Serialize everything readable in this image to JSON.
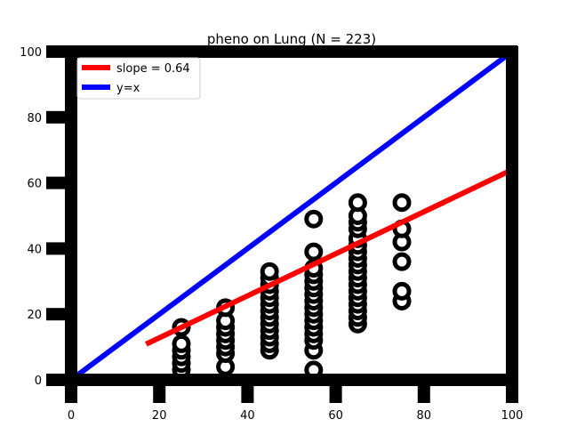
{
  "chart_data": {
    "type": "scatter",
    "title": "pheno on Lung (N = 223)",
    "xlabel": "",
    "ylabel": "",
    "xlim": [
      0,
      100
    ],
    "ylim": [
      0,
      100
    ],
    "xticks": [
      0,
      20,
      40,
      60,
      80,
      100
    ],
    "yticks": [
      0,
      20,
      40,
      60,
      80,
      100
    ],
    "grid": false,
    "legend_position": "top-left",
    "legend": [
      {
        "label": "slope = 0.64",
        "color": "#ff0000"
      },
      {
        "label": "y=x",
        "color": "#0000ff"
      }
    ],
    "lines": [
      {
        "name": "slope = 0.64",
        "slope": 0.64,
        "x0": 17,
        "x1": 100,
        "color": "#ff0000"
      },
      {
        "name": "y=x",
        "slope": 1.0,
        "x0": 0,
        "x1": 100,
        "color": "#0000ff"
      }
    ],
    "points": [
      {
        "x": 25,
        "y": 3
      },
      {
        "x": 25,
        "y": 5
      },
      {
        "x": 25,
        "y": 7
      },
      {
        "x": 25,
        "y": 9
      },
      {
        "x": 25,
        "y": 11
      },
      {
        "x": 25,
        "y": 16
      },
      {
        "x": 35,
        "y": 4
      },
      {
        "x": 35,
        "y": 8
      },
      {
        "x": 35,
        "y": 10
      },
      {
        "x": 35,
        "y": 12
      },
      {
        "x": 35,
        "y": 14
      },
      {
        "x": 35,
        "y": 16
      },
      {
        "x": 35,
        "y": 18
      },
      {
        "x": 35,
        "y": 22
      },
      {
        "x": 45,
        "y": 9
      },
      {
        "x": 45,
        "y": 11
      },
      {
        "x": 45,
        "y": 13
      },
      {
        "x": 45,
        "y": 15
      },
      {
        "x": 45,
        "y": 17
      },
      {
        "x": 45,
        "y": 19
      },
      {
        "x": 45,
        "y": 21
      },
      {
        "x": 45,
        "y": 23
      },
      {
        "x": 45,
        "y": 25
      },
      {
        "x": 45,
        "y": 27
      },
      {
        "x": 45,
        "y": 29
      },
      {
        "x": 45,
        "y": 31
      },
      {
        "x": 45,
        "y": 33
      },
      {
        "x": 55,
        "y": 3
      },
      {
        "x": 55,
        "y": 9
      },
      {
        "x": 55,
        "y": 12
      },
      {
        "x": 55,
        "y": 14
      },
      {
        "x": 55,
        "y": 16
      },
      {
        "x": 55,
        "y": 18
      },
      {
        "x": 55,
        "y": 20
      },
      {
        "x": 55,
        "y": 22
      },
      {
        "x": 55,
        "y": 24
      },
      {
        "x": 55,
        "y": 26
      },
      {
        "x": 55,
        "y": 28
      },
      {
        "x": 55,
        "y": 30
      },
      {
        "x": 55,
        "y": 32
      },
      {
        "x": 55,
        "y": 34
      },
      {
        "x": 55,
        "y": 39
      },
      {
        "x": 55,
        "y": 49
      },
      {
        "x": 65,
        "y": 17
      },
      {
        "x": 65,
        "y": 19
      },
      {
        "x": 65,
        "y": 21
      },
      {
        "x": 65,
        "y": 23
      },
      {
        "x": 65,
        "y": 25
      },
      {
        "x": 65,
        "y": 27
      },
      {
        "x": 65,
        "y": 29
      },
      {
        "x": 65,
        "y": 31
      },
      {
        "x": 65,
        "y": 33
      },
      {
        "x": 65,
        "y": 35
      },
      {
        "x": 65,
        "y": 37
      },
      {
        "x": 65,
        "y": 39
      },
      {
        "x": 65,
        "y": 41
      },
      {
        "x": 65,
        "y": 43
      },
      {
        "x": 65,
        "y": 46
      },
      {
        "x": 65,
        "y": 48
      },
      {
        "x": 65,
        "y": 50
      },
      {
        "x": 65,
        "y": 54
      },
      {
        "x": 75,
        "y": 24
      },
      {
        "x": 75,
        "y": 27
      },
      {
        "x": 75,
        "y": 36
      },
      {
        "x": 75,
        "y": 42
      },
      {
        "x": 75,
        "y": 46
      },
      {
        "x": 75,
        "y": 54
      }
    ]
  }
}
